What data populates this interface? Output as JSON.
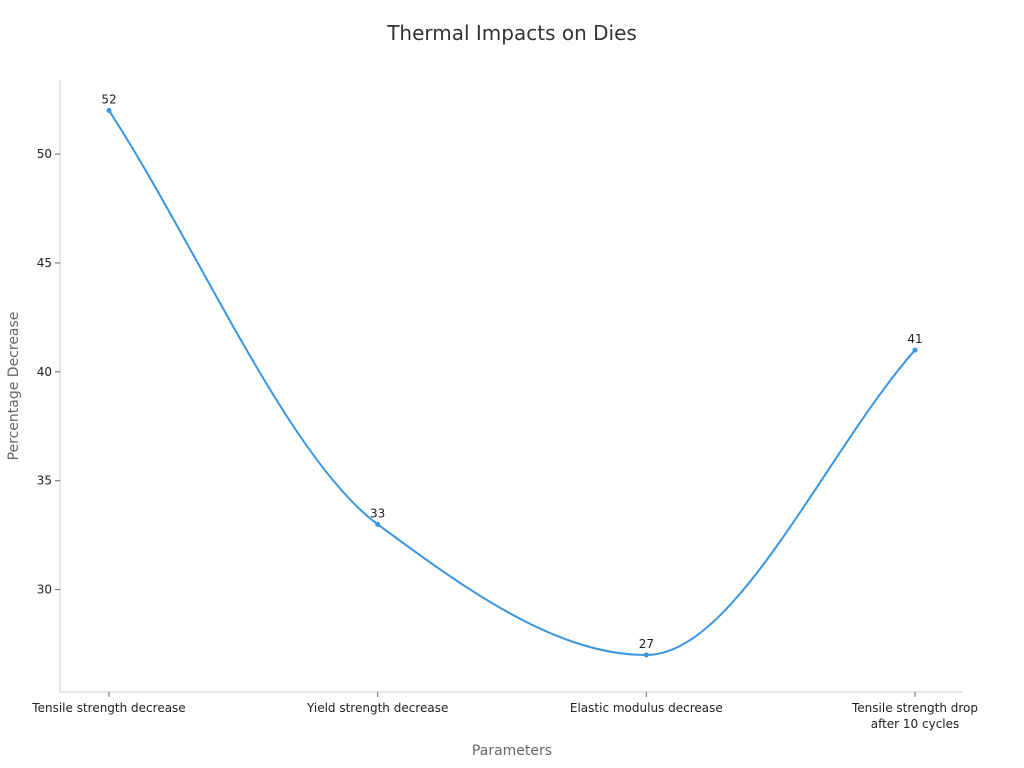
{
  "chart_data": {
    "type": "line",
    "title": "Thermal Impacts on Dies",
    "xlabel": "Parameters",
    "ylabel": "Percentage Decrease",
    "categories": [
      [
        "Tensile strength decrease"
      ],
      [
        "Yield strength decrease"
      ],
      [
        "Elastic modulus decrease"
      ],
      [
        "Tensile strength drop",
        "after 10 cycles"
      ]
    ],
    "values": [
      52,
      33,
      27,
      41
    ],
    "data_labels": [
      "52",
      "33",
      "27",
      "41"
    ],
    "yticks": [
      30,
      35,
      40,
      45,
      50
    ],
    "ytick_labels": [
      "30",
      "35",
      "40",
      "45",
      "50"
    ],
    "ylim": [
      25.3,
      53.4
    ],
    "grid": false,
    "smooth": true,
    "line_color": "#3a95e0"
  }
}
